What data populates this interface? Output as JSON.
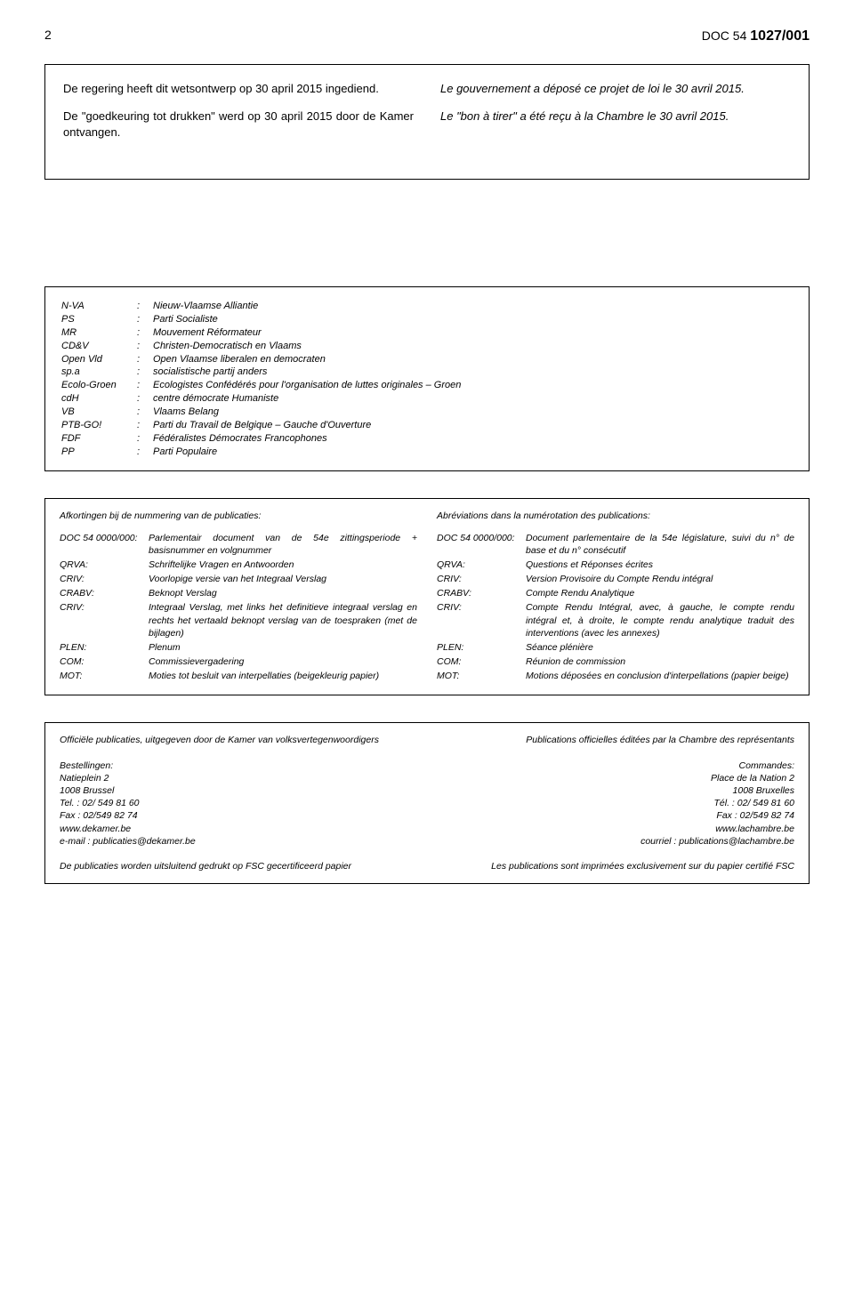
{
  "header": {
    "page_number": "2",
    "doc_prefix": "DOC 54",
    "doc_number": "1027/001"
  },
  "top_box": {
    "nl": {
      "p1": "De regering heeft dit wetsontwerp op 30 april 2015 ingediend.",
      "p2": "De \"goedkeuring tot drukken\" werd op 30 april 2015 door de Kamer ontvangen."
    },
    "fr": {
      "p1": "Le gouvernement a déposé ce projet de loi le 30 avril 2015.",
      "p2": "Le \"bon à tirer\" a été reçu à la Chambre le 30 avril 2015."
    }
  },
  "parties": [
    {
      "abbr": "N-VA",
      "name": "Nieuw-Vlaamse Alliantie"
    },
    {
      "abbr": "PS",
      "name": "Parti Socialiste"
    },
    {
      "abbr": "MR",
      "name": "Mouvement Réformateur"
    },
    {
      "abbr": "CD&V",
      "name": "Christen-Democratisch en Vlaams"
    },
    {
      "abbr": "Open Vld",
      "name": "Open Vlaamse liberalen en democraten"
    },
    {
      "abbr": "sp.a",
      "name": "socialistische partij anders"
    },
    {
      "abbr": "Ecolo-Groen",
      "name": "Ecologistes Confédérés pour l'organisation de luttes originales – Groen"
    },
    {
      "abbr": "cdH",
      "name": "centre démocrate Humaniste"
    },
    {
      "abbr": "VB",
      "name": "Vlaams Belang"
    },
    {
      "abbr": "PTB-GO!",
      "name": "Parti du Travail de Belgique – Gauche d'Ouverture"
    },
    {
      "abbr": "FDF",
      "name": "Fédéralistes Démocrates Francophones"
    },
    {
      "abbr": "PP",
      "name": "Parti Populaire"
    }
  ],
  "abbr_nl": {
    "title": "Afkortingen bij de nummering van de publicaties:",
    "rows": [
      {
        "k": "DOC 54 0000/000:",
        "v": "Parlementair document van de 54e zittingsperiode + basisnummer en volgnummer"
      },
      {
        "k": "QRVA:",
        "v": "Schriftelijke Vragen en Antwoorden"
      },
      {
        "k": "CRIV:",
        "v": "Voorlopige versie van het Integraal Verslag"
      },
      {
        "k": "CRABV:",
        "v": "Beknopt Verslag"
      },
      {
        "k": "CRIV:",
        "v": "Integraal Verslag, met links het definitieve integraal verslag en rechts het vertaald beknopt verslag van de toespraken (met de bijlagen)"
      },
      {
        "k": "PLEN:",
        "v": "Plenum"
      },
      {
        "k": "COM:",
        "v": "Commissievergadering"
      },
      {
        "k": "MOT:",
        "v": "Moties tot besluit van interpellaties (beigekleurig papier)"
      }
    ]
  },
  "abbr_fr": {
    "title": "Abréviations dans la numérotation des publications:",
    "rows": [
      {
        "k": "DOC 54 0000/000:",
        "v": "Document parlementaire de la 54e législature, suivi du n° de base et du n° consécutif"
      },
      {
        "k": "QRVA:",
        "v": "Questions et Réponses écrites"
      },
      {
        "k": "CRIV:",
        "v": "Version Provisoire du Compte Rendu intégral"
      },
      {
        "k": "CRABV:",
        "v": "Compte Rendu Analytique"
      },
      {
        "k": "CRIV:",
        "v": "Compte Rendu Intégral, avec, à gauche, le compte rendu intégral et, à droite, le compte rendu analytique traduit des interventions (avec les annexes)"
      },
      {
        "k": "PLEN:",
        "v": "Séance plénière"
      },
      {
        "k": "COM:",
        "v": "Réunion de commission"
      },
      {
        "k": "MOT:",
        "v": "Motions déposées en conclusion d'interpellations (papier beige)"
      }
    ]
  },
  "pub": {
    "nl": {
      "title": "Officiële publicaties, uitgegeven door de Kamer van volksvertegenwoordigers",
      "order_label": "Bestellingen:",
      "addr1": "Natieplein 2",
      "addr2": "1008 Brussel",
      "tel": "Tel. : 02/ 549 81 60",
      "fax": "Fax : 02/549 82 74",
      "site": "www.dekamer.be",
      "email": "e-mail : publicaties@dekamer.be",
      "footer": "De publicaties worden uitsluitend gedrukt op FSC gecertificeerd papier"
    },
    "fr": {
      "title": "Publications officielles éditées par la Chambre des représentants",
      "order_label": "Commandes:",
      "addr1": "Place de la Nation 2",
      "addr2": "1008 Bruxelles",
      "tel": "Tél. : 02/ 549 81 60",
      "fax": "Fax : 02/549 82 74",
      "site": "www.lachambre.be",
      "email": "courriel : publications@lachambre.be",
      "footer": "Les publications sont imprimées exclusivement sur du papier certifié FSC"
    }
  }
}
